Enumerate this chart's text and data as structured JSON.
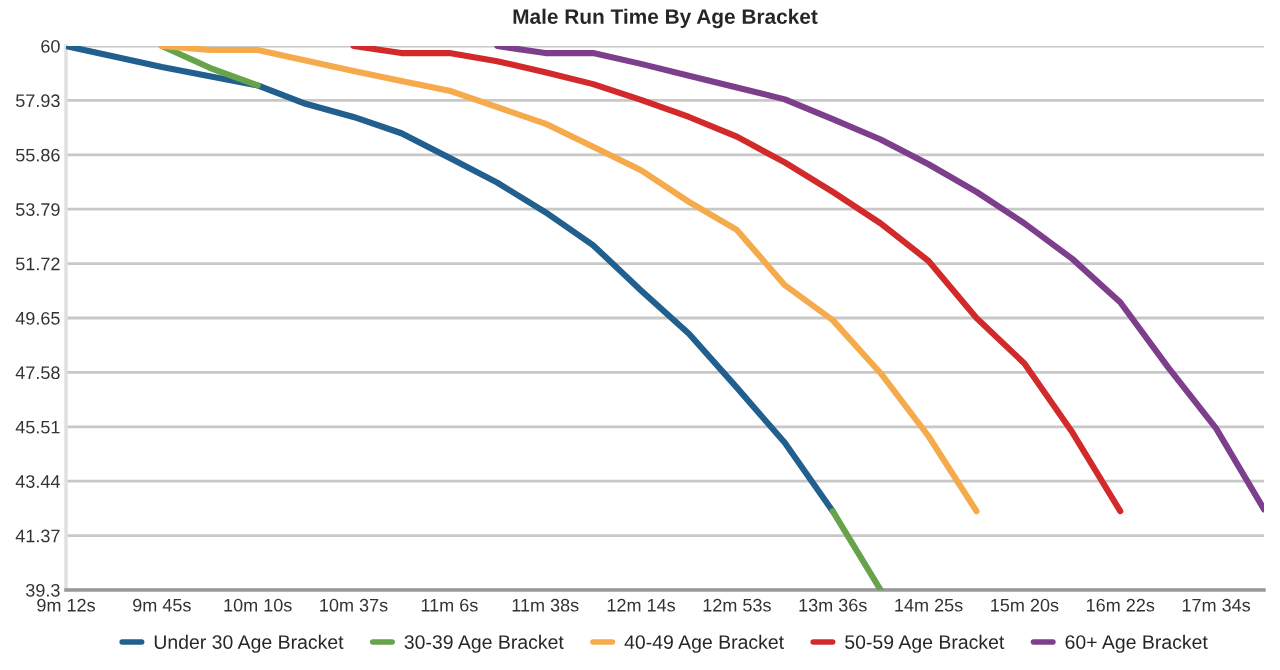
{
  "chart_data": {
    "type": "line",
    "title": "Male Run Time By Age Bracket",
    "categories": [
      "9m 12s",
      null,
      "9m 45s",
      null,
      "10m 10s",
      null,
      "10m 37s",
      null,
      "11m 6s",
      null,
      "11m 38s",
      null,
      "12m 14s",
      null,
      "12m 53s",
      null,
      "13m 36s",
      null,
      "14m 25s",
      null,
      "15m 20s",
      null,
      "16m 22s",
      null,
      "17m 34s",
      null
    ],
    "series": [
      {
        "name": "Under 30 Age Bracket",
        "color": "#215f8e",
        "values": [
          60,
          59.6,
          59.2,
          58.85,
          58.5,
          57.8,
          57.3,
          56.68,
          55.75,
          54.8,
          53.68,
          52.42,
          50.7,
          49.05,
          47.0,
          44.9,
          42.3,
          null,
          null,
          null,
          null,
          null,
          null,
          null,
          null,
          null
        ]
      },
      {
        "name": "30-39 Age Bracket",
        "color": "#66a34a",
        "values": [
          null,
          null,
          60,
          59.17,
          58.5,
          null,
          null,
          null,
          null,
          null,
          null,
          null,
          null,
          null,
          null,
          null,
          42.3,
          39.3,
          null,
          null,
          null,
          null,
          null,
          null,
          null,
          null
        ]
      },
      {
        "name": "40-49 Age Bracket",
        "color": "#f5ab4b",
        "values": [
          null,
          null,
          60,
          59.85,
          59.85,
          59.45,
          59.05,
          58.67,
          58.3,
          57.67,
          57.05,
          56.17,
          55.27,
          54.07,
          53.0,
          50.9,
          49.57,
          47.55,
          45.15,
          42.3,
          null,
          null,
          null,
          null,
          null,
          null
        ]
      },
      {
        "name": "50-59 Age Bracket",
        "color": "#d22a2a",
        "values": [
          null,
          null,
          null,
          null,
          null,
          null,
          60,
          59.73,
          59.73,
          59.42,
          59.0,
          58.55,
          57.95,
          57.3,
          56.55,
          55.57,
          54.45,
          53.25,
          51.82,
          49.65,
          47.92,
          45.3,
          42.3,
          null,
          null,
          null
        ]
      },
      {
        "name": "60+ Age Bracket",
        "color": "#7d3f8c",
        "values": [
          null,
          null,
          null,
          null,
          null,
          null,
          null,
          null,
          null,
          60,
          59.73,
          59.73,
          59.32,
          58.87,
          58.42,
          57.97,
          57.22,
          56.44,
          55.5,
          54.45,
          53.25,
          51.9,
          50.25,
          47.77,
          45.45,
          42.37
        ]
      }
    ],
    "ylim": [
      39.3,
      60
    ],
    "yticks": [
      39.3,
      41.37,
      43.44,
      45.51,
      47.58,
      49.65,
      51.72,
      53.79,
      55.86,
      57.93,
      60
    ],
    "grid": "y",
    "legend": "bottom",
    "marker": "none",
    "line_style": "solid"
  }
}
